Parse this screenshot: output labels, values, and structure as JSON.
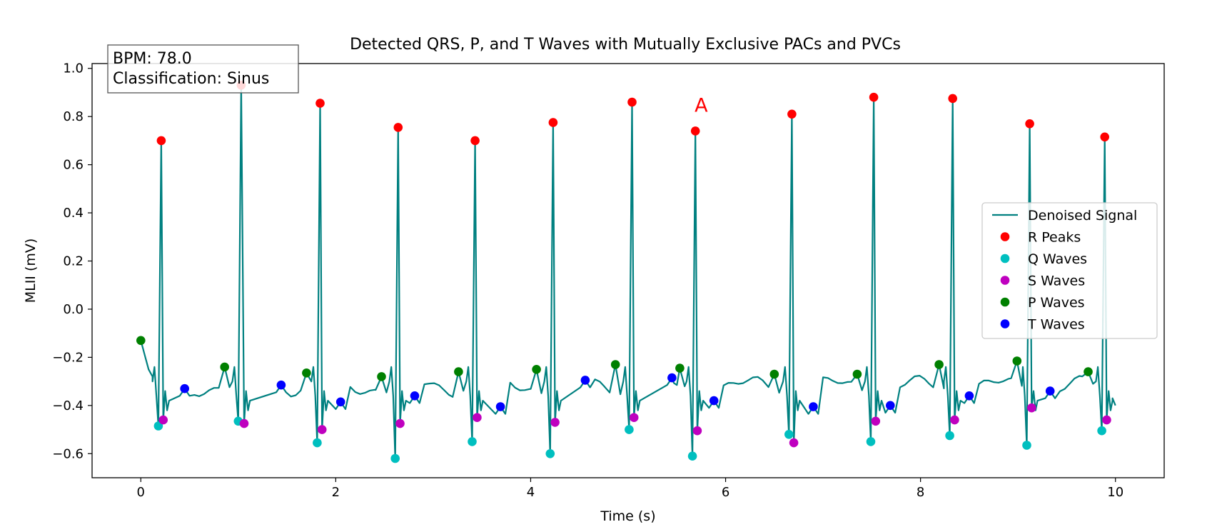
{
  "chart_data": {
    "type": "line",
    "title": "Detected QRS, P, and T Waves with Mutually Exclusive PACs and PVCs",
    "xlabel": "Time (s)",
    "ylabel": "MLII (mV)",
    "xlim": [
      -0.5,
      10.5
    ],
    "ylim": [
      -0.7,
      1.02
    ],
    "xticks": [
      0,
      2,
      4,
      6,
      8,
      10
    ],
    "yticks": [
      1.0,
      0.8,
      0.6,
      0.4,
      0.2,
      0.0,
      -0.2,
      -0.4,
      -0.6
    ],
    "ytick_labels": [
      "1.0",
      "0.8",
      "0.6",
      "0.4",
      "0.2",
      "0.0",
      "−0.2",
      "−0.4",
      "−0.6"
    ],
    "grid": false,
    "legend_position": "center-right",
    "info_box": {
      "bpm_text": "BPM: 78.0",
      "classification_text": "Classification: Sinus"
    },
    "annotations": [
      {
        "text": "A",
        "x": 5.75,
        "y": 0.85,
        "color": "#ff0000"
      }
    ],
    "signal": {
      "name": "Denoised Signal",
      "color": "#008080",
      "beats": [
        {
          "r": [
            0.21,
            0.7
          ],
          "q": [
            0.18,
            -0.485
          ],
          "s": [
            0.23,
            -0.46
          ],
          "p": [
            0.0,
            -0.13
          ],
          "t": [
            0.45,
            -0.33
          ]
        },
        {
          "r": [
            1.03,
            0.93
          ],
          "q": [
            1.0,
            -0.465
          ],
          "s": [
            1.06,
            -0.475
          ],
          "p": [
            0.86,
            -0.24
          ],
          "t": [
            1.44,
            -0.315
          ]
        },
        {
          "r": [
            1.84,
            0.855
          ],
          "q": [
            1.81,
            -0.555
          ],
          "s": [
            1.86,
            -0.5
          ],
          "p": [
            1.7,
            -0.265
          ],
          "t": [
            2.05,
            -0.385
          ]
        },
        {
          "r": [
            2.64,
            0.755
          ],
          "q": [
            2.61,
            -0.62
          ],
          "s": [
            2.66,
            -0.475
          ],
          "p": [
            2.47,
            -0.28
          ],
          "t": [
            2.81,
            -0.36
          ]
        },
        {
          "r": [
            3.43,
            0.7
          ],
          "q": [
            3.4,
            -0.55
          ],
          "s": [
            3.45,
            -0.45
          ],
          "p": [
            3.26,
            -0.26
          ],
          "t": [
            3.69,
            -0.405
          ]
        },
        {
          "r": [
            4.23,
            0.775
          ],
          "q": [
            4.2,
            -0.6
          ],
          "s": [
            4.25,
            -0.47
          ],
          "p": [
            4.06,
            -0.25
          ],
          "t": [
            4.56,
            -0.295
          ]
        },
        {
          "r": [
            5.04,
            0.86
          ],
          "q": [
            5.01,
            -0.5
          ],
          "s": [
            5.06,
            -0.45
          ],
          "p": [
            4.87,
            -0.23
          ],
          "t": [
            5.45,
            -0.285
          ]
        },
        {
          "r": [
            5.69,
            0.74
          ],
          "q": [
            5.66,
            -0.61
          ],
          "s": [
            5.71,
            -0.505
          ],
          "p": [
            5.53,
            -0.245
          ],
          "t": [
            5.88,
            -0.38
          ]
        },
        {
          "r": [
            6.68,
            0.81
          ],
          "q": [
            6.65,
            -0.52
          ],
          "s": [
            6.7,
            -0.555
          ],
          "p": [
            6.5,
            -0.27
          ],
          "t": [
            6.9,
            -0.405
          ]
        },
        {
          "r": [
            7.52,
            0.88
          ],
          "q": [
            7.49,
            -0.55
          ],
          "s": [
            7.54,
            -0.465
          ],
          "p": [
            7.35,
            -0.27
          ],
          "t": [
            7.69,
            -0.4
          ]
        },
        {
          "r": [
            8.33,
            0.875
          ],
          "q": [
            8.3,
            -0.525
          ],
          "s": [
            8.35,
            -0.46
          ],
          "p": [
            8.19,
            -0.23
          ],
          "t": [
            8.5,
            -0.36
          ]
        },
        {
          "r": [
            9.12,
            0.77
          ],
          "q": [
            9.09,
            -0.565
          ],
          "s": [
            9.14,
            -0.41
          ],
          "p": [
            8.99,
            -0.215
          ],
          "t": [
            9.33,
            -0.34
          ]
        },
        {
          "r": [
            9.89,
            0.715
          ],
          "q": [
            9.86,
            -0.505
          ],
          "s": [
            9.91,
            -0.46
          ],
          "p": [
            9.72,
            -0.26
          ],
          "t": null
        }
      ],
      "end": [
        10.0,
        -0.4
      ]
    },
    "series": [
      {
        "name": "R Peaks",
        "key": "r",
        "color": "#ff0000"
      },
      {
        "name": "Q Waves",
        "key": "q",
        "color": "#00bfbf"
      },
      {
        "name": "S Waves",
        "key": "s",
        "color": "#bf00bf"
      },
      {
        "name": "P Waves",
        "key": "p",
        "color": "#008000"
      },
      {
        "name": "T Waves",
        "key": "t",
        "color": "#0000ff"
      }
    ]
  }
}
